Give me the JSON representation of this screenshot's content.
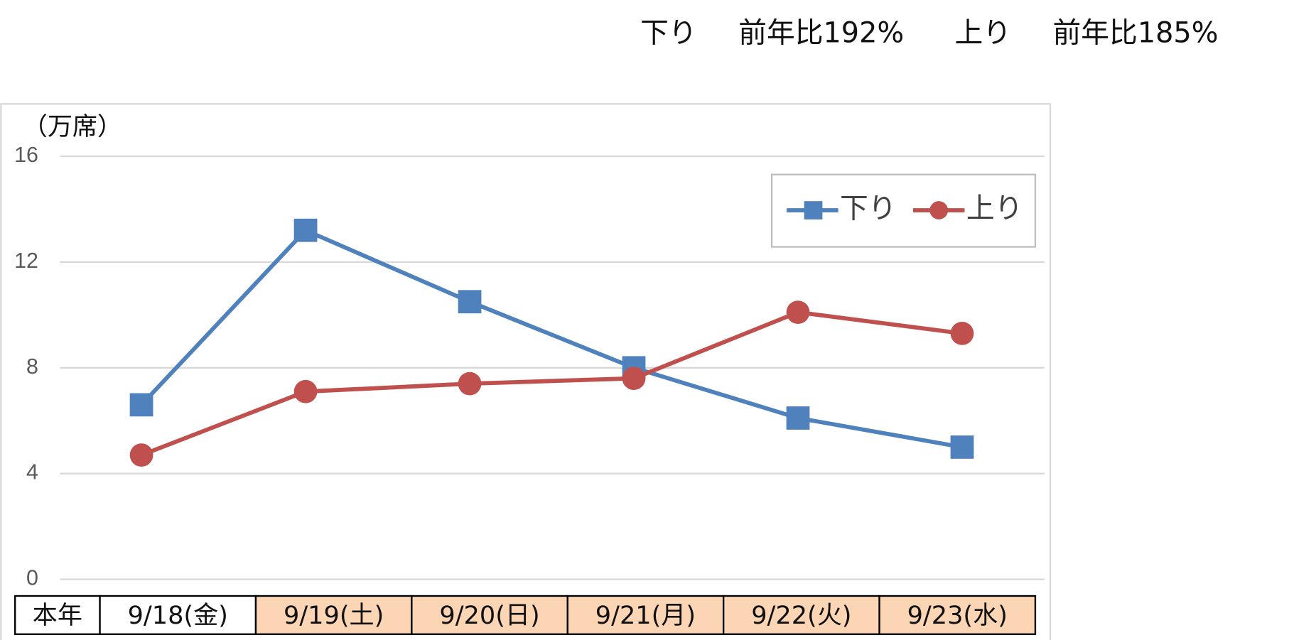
{
  "header": {
    "parts": [
      "下り",
      "前年比192%",
      "上り",
      "前年比185%"
    ]
  },
  "chart_data": {
    "type": "line",
    "y_label": "（万席）",
    "categories": [
      "9/18(金)",
      "9/19(土)",
      "9/20(日)",
      "9/21(月)",
      "9/22(火)",
      "9/23(水)"
    ],
    "row_label": "本年",
    "category_colors": [
      "#ffffff",
      "#fcd5b4",
      "#fcd5b4",
      "#fcd5b4",
      "#fcd5b4",
      "#fcd5b4"
    ],
    "series": [
      {
        "name": "下り",
        "color": "#4f81bd",
        "marker": "square",
        "values": [
          6.6,
          13.2,
          10.5,
          8.0,
          6.1,
          5.0
        ]
      },
      {
        "name": "上り",
        "color": "#c0504d",
        "marker": "circle",
        "values": [
          4.7,
          7.1,
          7.4,
          7.6,
          10.1,
          9.3
        ]
      }
    ],
    "ylim": [
      0,
      16
    ],
    "yticks": [
      0,
      4,
      8,
      12,
      16
    ],
    "grid": true,
    "legend": "upper right"
  }
}
